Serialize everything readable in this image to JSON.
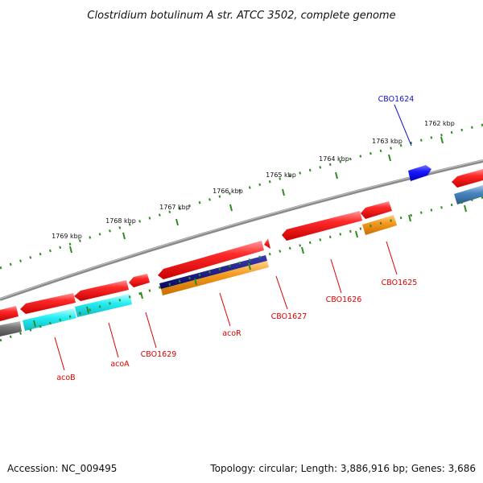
{
  "title": "Clostridium botulinum A str. ATCC 3502, complete genome",
  "accession": "Accession: NC_009495",
  "topology": "Topology: circular; Length: 3,886,916 bp; Genes: 3,686",
  "ruler_labels": [
    "1769 kbp",
    "1768 kbp",
    "1767 kbp",
    "1766 kbp",
    "1765 kbp",
    "1764 kbp",
    "1763 kbp",
    "1762 kbp"
  ],
  "gene_labels": [
    "acoB",
    "acoA",
    "CBO1629",
    "acoR",
    "CBO1627",
    "CBO1626",
    "CBO1625",
    "CBO1624"
  ],
  "colors": {
    "backbone": "#8c8c8c",
    "ruler": "#2e8b22",
    "gene": "#ee1111",
    "forward_gene": "#1515ee",
    "label_red": "#dd0000",
    "label_blue": "#1111cc",
    "cyan": "#22e8ee",
    "orange": "#f39a20",
    "navy": "#101080",
    "steelblue": "#4a86c0",
    "gray": "#707070"
  }
}
